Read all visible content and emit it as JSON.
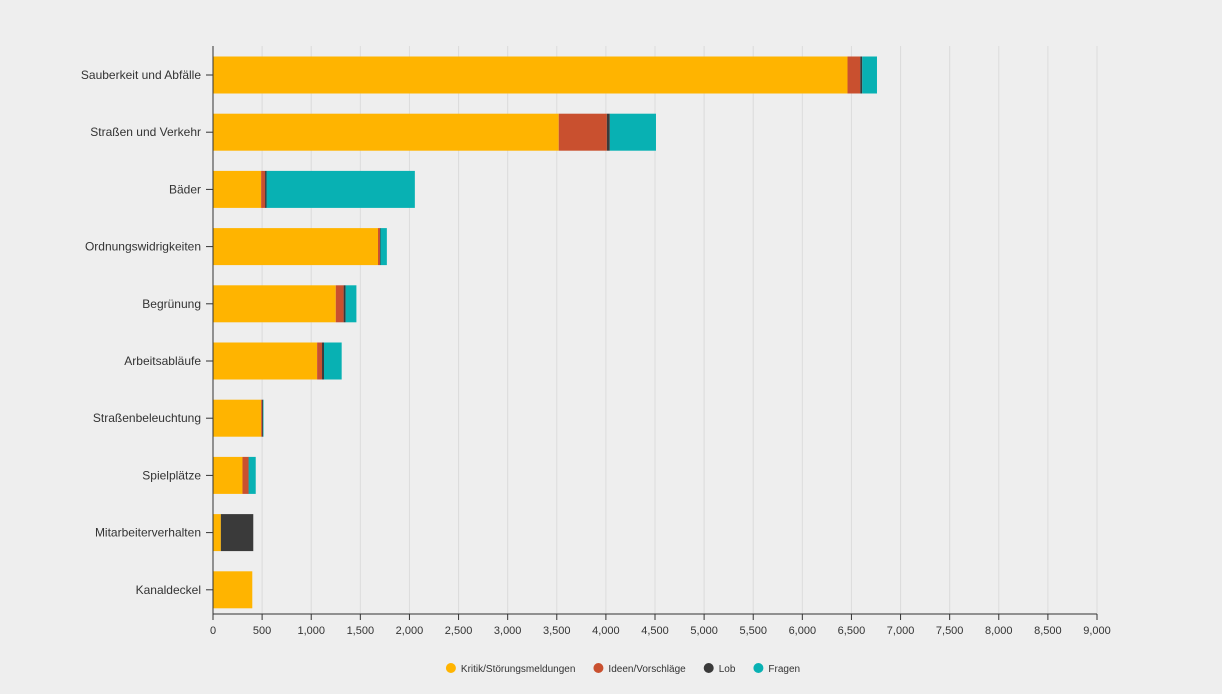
{
  "chart_data": {
    "type": "bar",
    "orientation": "horizontal",
    "stacked": true,
    "title": "",
    "xlabel": "",
    "ylabel": "",
    "categories": [
      "Sauberkeit und Abfälle",
      "Straßen und Verkehr",
      "Bäder",
      "Ordnungswidrigkeiten",
      "Begrünung",
      "Arbeitsabläufe",
      "Straßenbeleuchtung",
      "Spielplätze",
      "Mitarbeiterverhalten",
      "Kanaldeckel"
    ],
    "series": [
      {
        "name": "Kritik/Störungsmeldungen",
        "color": "#ffb400",
        "values": [
          6460,
          3520,
          490,
          1680,
          1250,
          1060,
          490,
          300,
          80,
          400
        ]
      },
      {
        "name": "Ideen/Vorschläge",
        "color": "#c9502f",
        "values": [
          130,
          490,
          40,
          20,
          80,
          50,
          10,
          60,
          0,
          0
        ]
      },
      {
        "name": "Lob",
        "color": "#3a3a3a",
        "values": [
          20,
          30,
          15,
          5,
          20,
          20,
          10,
          5,
          330,
          0
        ]
      },
      {
        "name": "Fragen",
        "color": "#08b1b3",
        "values": [
          150,
          470,
          1510,
          65,
          110,
          180,
          5,
          70,
          0,
          0
        ]
      }
    ],
    "xlim": [
      0,
      9000
    ],
    "xticks": [
      0,
      500,
      1000,
      1500,
      2000,
      2500,
      3000,
      3500,
      4000,
      4500,
      5000,
      5500,
      6000,
      6500,
      7000,
      7500,
      8000,
      8500,
      9000
    ],
    "xtick_labels": [
      "0",
      "500",
      "1,000",
      "1,500",
      "2,000",
      "2,500",
      "3,000",
      "3,500",
      "4,000",
      "4,500",
      "5,000",
      "5,500",
      "6,000",
      "6,500",
      "7,000",
      "7,500",
      "8,000",
      "8,500",
      "9,000"
    ],
    "grid": "vertical",
    "legend_position": "bottom-center"
  }
}
